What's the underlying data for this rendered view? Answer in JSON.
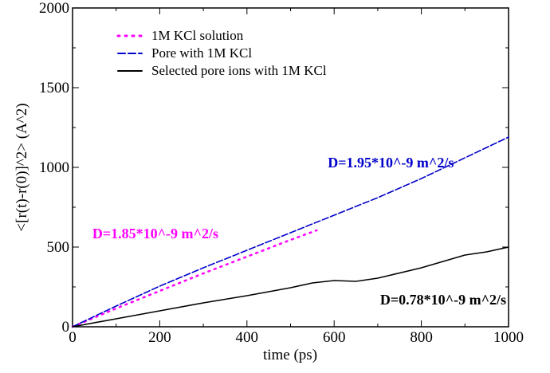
{
  "chart_data": {
    "type": "line",
    "xlabel": "time (ps)",
    "ylabel": "<[r(t)-r(0)]^2>  (A^2)",
    "xlim": [
      0,
      1000
    ],
    "ylim": [
      0,
      2000
    ],
    "xticks": [
      0,
      200,
      400,
      600,
      800,
      1000
    ],
    "yticks": [
      0,
      500,
      1000,
      1500,
      2000
    ],
    "legend_position": "top-left",
    "series": [
      {
        "name": "1M KCl solution",
        "color": "#ff00ff",
        "style": "dotted",
        "x": [
          0,
          100,
          200,
          300,
          400,
          500,
          560
        ],
        "y": [
          0,
          115,
          225,
          335,
          440,
          545,
          605
        ]
      },
      {
        "name": "Pore with 1M KCl",
        "color": "#0000cc",
        "style": "dashed",
        "x": [
          0,
          100,
          200,
          300,
          400,
          500,
          600,
          700,
          800,
          900,
          1000
        ],
        "y": [
          0,
          130,
          255,
          370,
          480,
          590,
          700,
          810,
          930,
          1060,
          1190
        ]
      },
      {
        "name": "Selected pore ions with 1M KCl",
        "color": "#000000",
        "style": "solid",
        "x": [
          0,
          100,
          200,
          300,
          400,
          500,
          550,
          600,
          650,
          700,
          800,
          900,
          950,
          1000
        ],
        "y": [
          0,
          50,
          100,
          150,
          195,
          245,
          275,
          290,
          285,
          305,
          370,
          450,
          470,
          500
        ]
      }
    ],
    "annotations": [
      {
        "text": "D=1.95*10^-9 m^2/s",
        "x": 730,
        "y": 1000,
        "color": "#0000cc"
      },
      {
        "text": "D=1.85*10^-9 m^2/s",
        "x": 190,
        "y": 555,
        "color": "#ff00ff"
      },
      {
        "text": "D=0.78*10^-9 m^2/s",
        "x": 850,
        "y": 140,
        "color": "#000000"
      }
    ]
  }
}
